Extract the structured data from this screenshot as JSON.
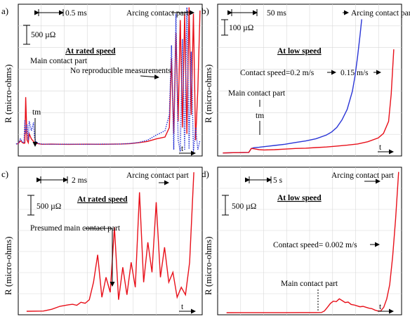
{
  "chart_data": [
    {
      "id": "a",
      "type": "line",
      "panel_label": "a)",
      "ylabel": "R (micro-ohms)",
      "xlabel": "t",
      "title": "At rated speed",
      "time_scale": "0.5 ms",
      "r_scale": "500 µΩ",
      "annotations": [
        "Main contact part",
        "No reproducible measurements",
        "Arcing contact part"
      ],
      "tm_label": "tm",
      "series": [
        {
          "color": "#e8101a",
          "style": "solid",
          "x": [
            0,
            0.05,
            0.1,
            0.15,
            0.18,
            0.2,
            0.22,
            0.25,
            0.28,
            0.3,
            0.35,
            0.4,
            0.42,
            0.45,
            0.5,
            0.55,
            0.6,
            0.8,
            1.0,
            1.2,
            1.4,
            1.6,
            1.8,
            2.0,
            2.2,
            2.4,
            2.6,
            2.8,
            3.0,
            3.2,
            3.4,
            3.5,
            3.55,
            3.6,
            3.65,
            3.7,
            3.75,
            3.8,
            3.85,
            3.9,
            3.95,
            4.0,
            4.05,
            4.1,
            4.15,
            4.2
          ],
          "y": [
            40,
            45,
            90,
            60,
            50,
            55,
            780,
            100,
            60,
            200,
            120,
            80,
            60,
            50,
            45,
            40,
            35,
            38,
            36,
            34,
            35,
            37,
            36,
            35,
            38,
            40,
            45,
            60,
            80,
            120,
            150,
            300,
            1400,
            200,
            1800,
            400,
            2000,
            300,
            2100,
            200,
            2200,
            500,
            2100,
            100,
            900,
            2150
          ]
        },
        {
          "color": "#2a35d6",
          "style": "dotted",
          "x": [
            0,
            0.05,
            0.1,
            0.15,
            0.18,
            0.2,
            0.22,
            0.25,
            0.28,
            0.3,
            0.35,
            0.4,
            0.42,
            0.45,
            0.5,
            0.55,
            0.6,
            0.8,
            1.0,
            1.2,
            1.4,
            1.6,
            1.8,
            2.0,
            2.2,
            2.4,
            2.6,
            2.8,
            3.0,
            3.2,
            3.4,
            3.5,
            3.55,
            3.6,
            3.65,
            3.7,
            3.75,
            3.8,
            3.85,
            3.9,
            3.95,
            4.0,
            4.05,
            4.1,
            4.15,
            4.2
          ],
          "y": [
            40,
            50,
            120,
            70,
            60,
            420,
            200,
            350,
            100,
            400,
            250,
            380,
            150,
            80,
            50,
            42,
            38,
            36,
            35,
            37,
            36,
            34,
            36,
            38,
            37,
            40,
            48,
            65,
            100,
            180,
            250,
            500,
            1600,
            -50,
            2100,
            100,
            -80,
            1700,
            -60,
            2200,
            -40,
            1500,
            -80,
            300,
            -50,
            100
          ]
        }
      ]
    },
    {
      "id": "b",
      "type": "line",
      "panel_label": "b)",
      "ylabel": "R (micro-ohms)",
      "xlabel": "t",
      "title": "At low speed",
      "time_scale": "50 ms",
      "r_scale": "100 µΩ",
      "annotations": [
        "Arcing contact part",
        "Contact speed=0.2 m/s",
        "0.15 m/s",
        "Main contact part"
      ],
      "tm_label": "tm",
      "series": [
        {
          "name": "0.2 m/s",
          "color": "#2a35d6",
          "x": [
            0,
            20,
            40,
            50,
            55,
            60,
            70,
            80,
            100,
            120,
            140,
            160,
            180,
            200,
            210,
            220,
            230,
            240,
            250,
            255,
            260,
            265,
            268
          ],
          "y": [
            10,
            12,
            13,
            14,
            40,
            45,
            48,
            52,
            60,
            68,
            80,
            90,
            105,
            130,
            150,
            180,
            230,
            300,
            420,
            520,
            650,
            800,
            900
          ]
        },
        {
          "name": "0.15 m/s",
          "color": "#e8101a",
          "x": [
            0,
            20,
            40,
            50,
            55,
            60,
            70,
            80,
            100,
            120,
            140,
            160,
            180,
            200,
            220,
            240,
            260,
            280,
            300,
            310,
            320,
            325,
            330
          ],
          "y": [
            10,
            12,
            13,
            14,
            40,
            38,
            32,
            30,
            32,
            36,
            40,
            42,
            46,
            50,
            56,
            62,
            70,
            85,
            110,
            140,
            220,
            400,
            700
          ]
        }
      ]
    },
    {
      "id": "c",
      "type": "line",
      "panel_label": "c)",
      "ylabel": "R (micro-ohms)",
      "xlabel": "t",
      "title": "At rated speed",
      "time_scale": "2 ms",
      "r_scale": "500 µΩ",
      "annotations": [
        "Arcing contact part",
        "Presumed main contact part"
      ],
      "series": [
        {
          "color": "#e8101a",
          "x": [
            0,
            2,
            3,
            4,
            5,
            5.5,
            6,
            6.5,
            7,
            7.5,
            8,
            8.5,
            9,
            9.5,
            10,
            10.5,
            11,
            11.5,
            12,
            12.5,
            13,
            13.5,
            14,
            14.5,
            15,
            15.5,
            16,
            16.5,
            17,
            17.5,
            18,
            18.5,
            19,
            19.5,
            20
          ],
          "y": [
            20,
            25,
            60,
            120,
            150,
            160,
            140,
            200,
            180,
            250,
            600,
            1150,
            300,
            700,
            400,
            1700,
            250,
            900,
            350,
            1000,
            500,
            2400,
            600,
            1400,
            800,
            2200,
            700,
            1300,
            600,
            800,
            300,
            500,
            350,
            1000,
            2800
          ]
        }
      ]
    },
    {
      "id": "d",
      "type": "line",
      "panel_label": "d)",
      "ylabel": "R (micro-ohms)",
      "xlabel": "t",
      "title": "At low speed",
      "time_scale": "5 s",
      "r_scale": "500 µΩ",
      "annotations": [
        "Arcing contact part",
        "Contact speed= 0.002 m/s",
        "Main contact part"
      ],
      "series": [
        {
          "color": "#e8101a",
          "x": [
            0,
            5,
            10,
            15,
            20,
            25,
            30,
            32,
            33,
            34,
            35,
            36,
            37,
            38,
            39,
            40,
            41,
            42,
            43,
            44,
            45,
            46,
            47,
            48,
            49,
            50,
            51,
            52,
            53,
            54,
            55,
            56,
            57,
            58
          ],
          "y": [
            5,
            6,
            6,
            7,
            7,
            8,
            8,
            10,
            40,
            120,
            200,
            250,
            240,
            300,
            260,
            220,
            230,
            180,
            170,
            150,
            130,
            140,
            120,
            100,
            90,
            60,
            40,
            40,
            120,
            300,
            600,
            1200,
            2000,
            3000
          ]
        }
      ]
    }
  ]
}
